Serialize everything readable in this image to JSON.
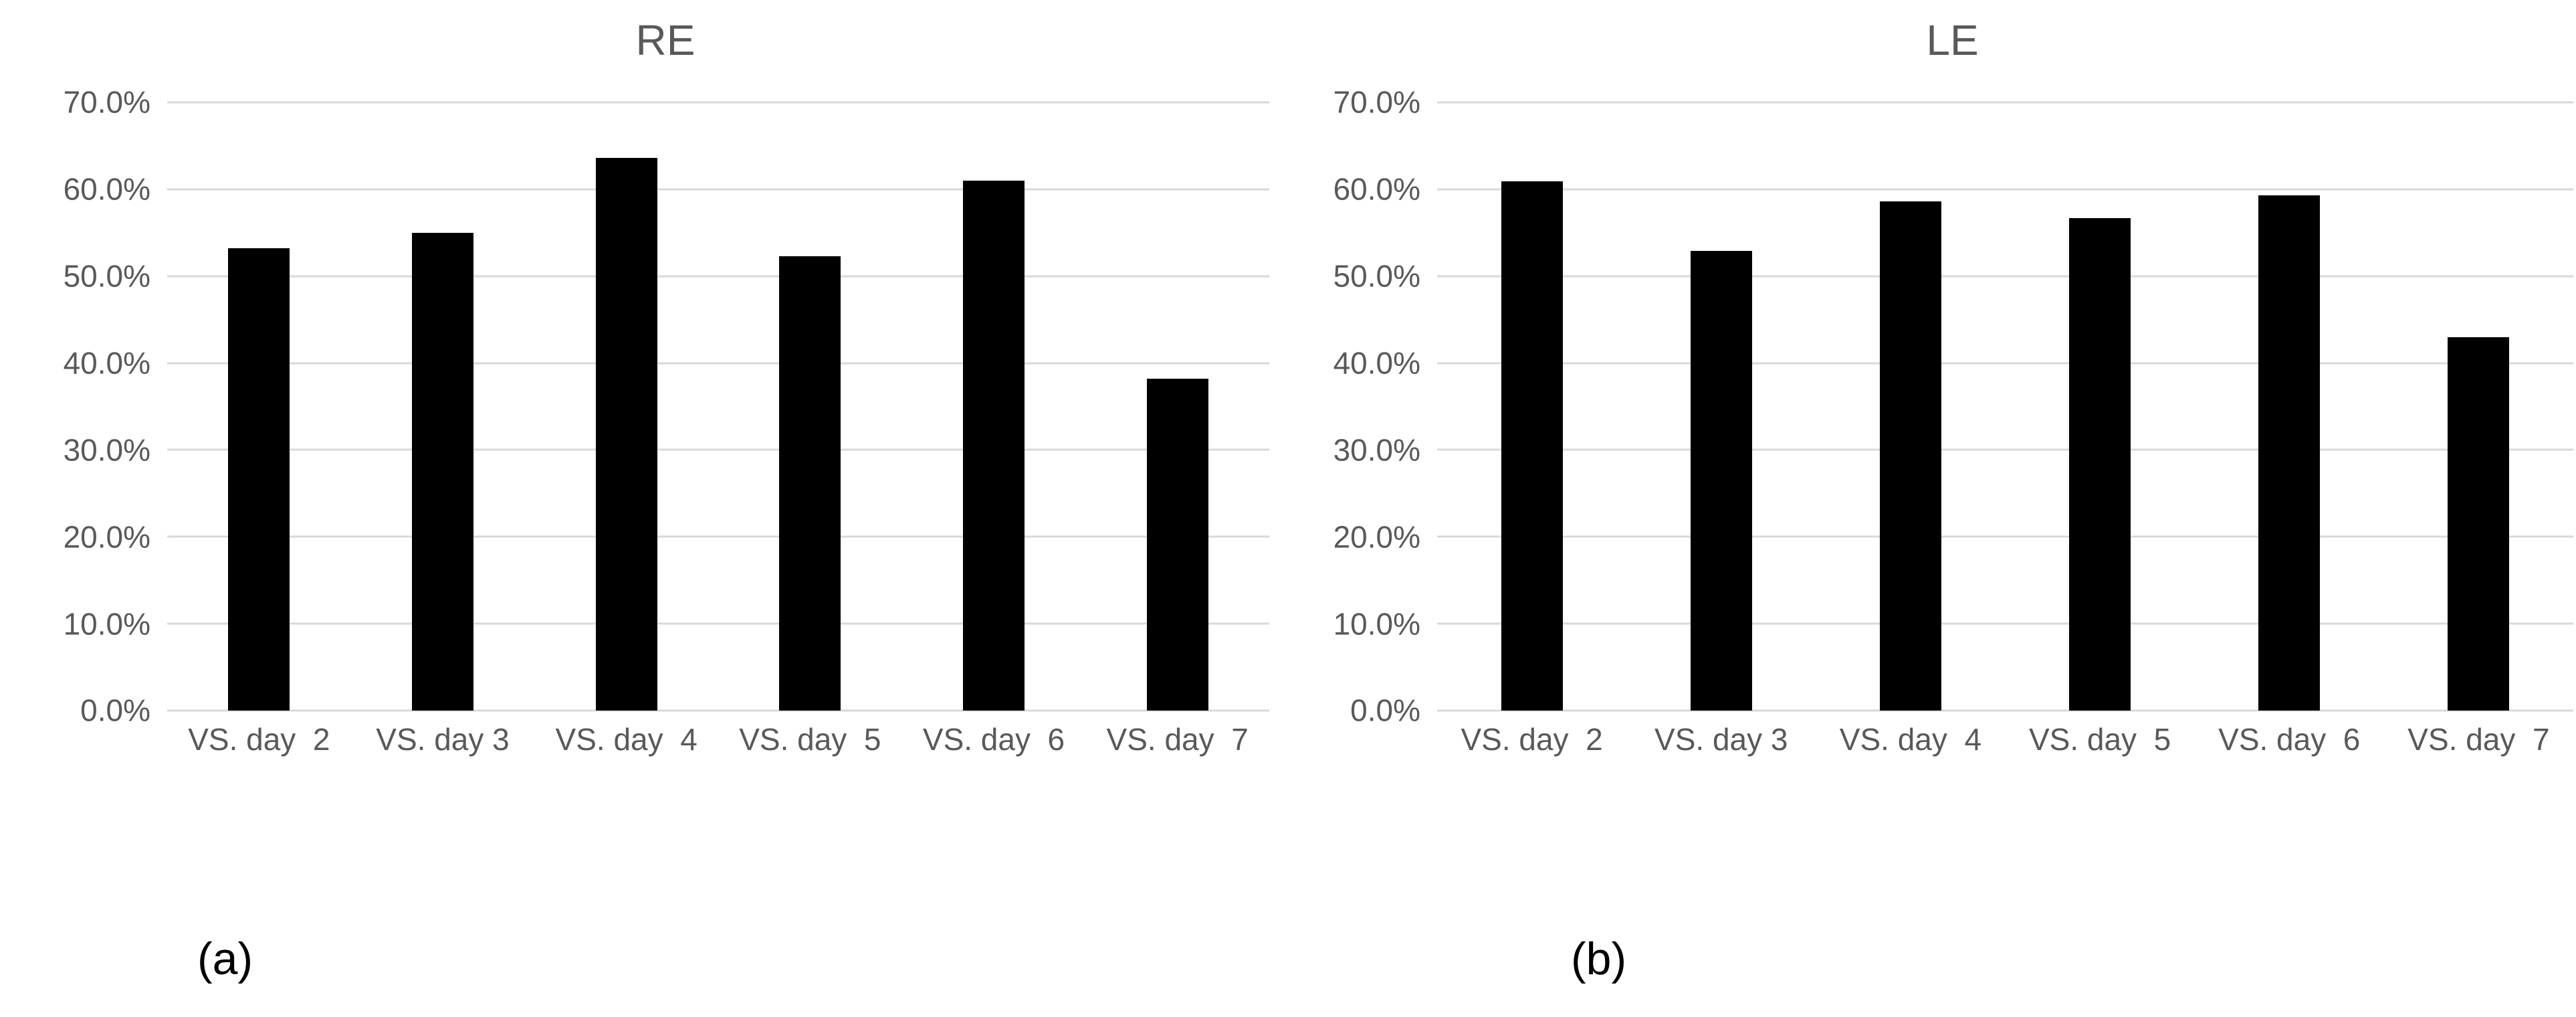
{
  "page": {
    "background_color": "#ffffff"
  },
  "chart_data": [
    {
      "type": "bar",
      "title": "RE",
      "caption": "(a)",
      "categories": [
        "VS. day  2",
        "VS. day 3",
        "VS. day  4",
        "VS. day  5",
        "VS. day  6",
        "VS. day  7"
      ],
      "values": [
        53.2,
        55.0,
        63.6,
        52.3,
        61.0,
        38.2
      ],
      "yticks": [
        "0.0%",
        "10.0%",
        "20.0%",
        "30.0%",
        "40.0%",
        "50.0%",
        "60.0%",
        "70.0%"
      ],
      "ylim": [
        0,
        70
      ],
      "ytick_step": 10,
      "xlabel": "",
      "ylabel": "",
      "grid": true,
      "legend": "none",
      "bar_color": "#000000",
      "gridline_color": "#d9d9d9",
      "tick_label_color": "#595959",
      "title_color": "#595959",
      "caption_color": "#000000"
    },
    {
      "type": "bar",
      "title": "LE",
      "caption": "(b)",
      "categories": [
        "VS. day  2",
        "VS. day 3",
        "VS. day  4",
        "VS. day  5",
        "VS. day  6",
        "VS. day  7"
      ],
      "values": [
        60.9,
        52.9,
        58.6,
        56.7,
        59.3,
        43.0
      ],
      "yticks": [
        "0.0%",
        "10.0%",
        "20.0%",
        "30.0%",
        "40.0%",
        "50.0%",
        "60.0%",
        "70.0%"
      ],
      "ylim": [
        0,
        70
      ],
      "ytick_step": 10,
      "xlabel": "",
      "ylabel": "",
      "grid": true,
      "legend": "none",
      "bar_color": "#000000",
      "gridline_color": "#d9d9d9",
      "tick_label_color": "#595959",
      "title_color": "#595959",
      "caption_color": "#000000"
    }
  ]
}
